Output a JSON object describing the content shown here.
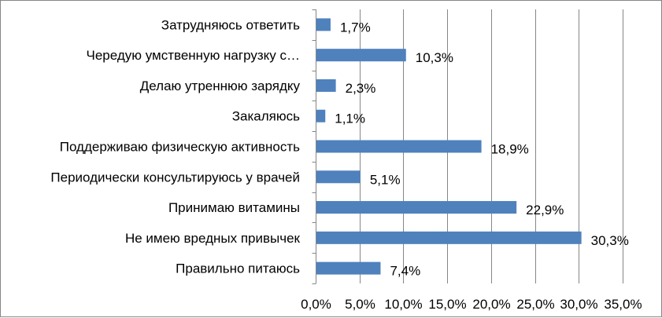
{
  "chart_data": {
    "type": "bar",
    "orientation": "horizontal",
    "title": "",
    "xlabel": "",
    "ylabel": "",
    "categories": [
      "Затрудняюсь ответить",
      "Чередую умственную нагрузку с…",
      "Делаю утреннюю зарядку",
      "Закаляюсь",
      "Поддерживаю физическую активность",
      "Периодически консультируюсь у врачей",
      "Принимаю витамины",
      "Не имею вредных привычек",
      "Правильно питаюсь"
    ],
    "values": [
      1.7,
      10.3,
      2.3,
      1.1,
      18.9,
      5.1,
      22.9,
      30.3,
      7.4
    ],
    "data_labels": [
      "1,7%",
      "10,3%",
      "2,3%",
      "1,1%",
      "18,9%",
      "5,1%",
      "22,9%",
      "30,3%",
      "7,4%"
    ],
    "x_ticks": [
      "0,0%",
      "5,0%",
      "10,0%",
      "15,0%",
      "20,0%",
      "25,0%",
      "30,0%",
      "35,0%"
    ],
    "xlim": [
      0,
      35
    ],
    "grid": true,
    "legend": "none",
    "bar_color": "#4F81BD",
    "grid_color": "#868686"
  }
}
